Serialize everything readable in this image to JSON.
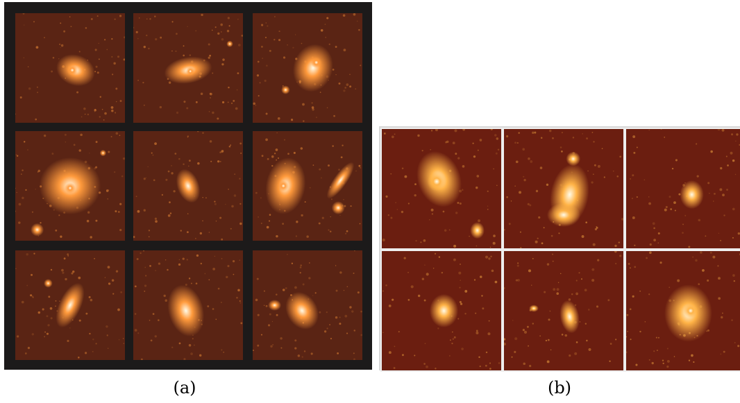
{
  "figures": [
    {
      "caption": "(a)",
      "grid": "3x3",
      "tiles": 9,
      "background": "#1c1a1a",
      "tile_color": "#5a2414",
      "glow_color": "#ff9a3c"
    },
    {
      "caption": "(b)",
      "grid": "3x2",
      "tiles": 6,
      "background": "#d8d8d8",
      "tile_color": "#6b1e10",
      "glow_color": "#ffb347"
    }
  ]
}
